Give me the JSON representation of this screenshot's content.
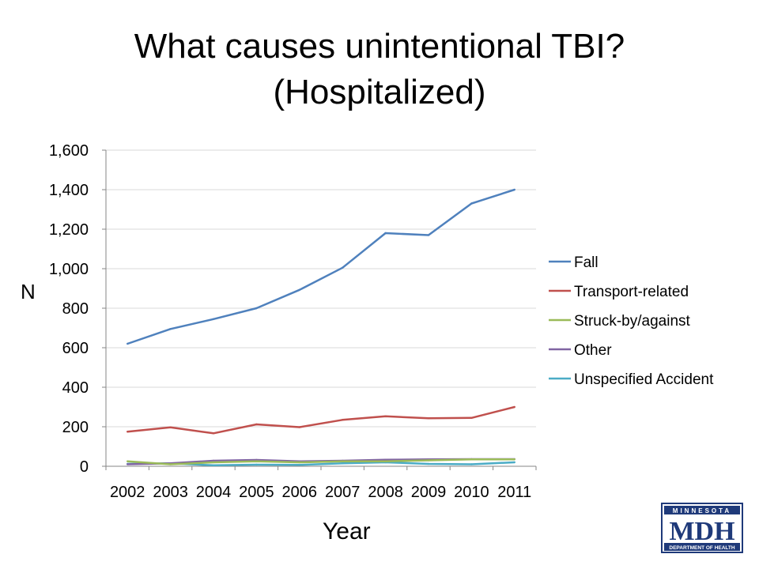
{
  "title_line1": "What causes unintentional TBI?",
  "title_line2": "(Hospitalized)",
  "chart_data": {
    "type": "line",
    "title": "What causes unintentional TBI? (Hospitalized)",
    "xlabel": "Year",
    "ylabel": "N",
    "x": [
      "2002",
      "2003",
      "2004",
      "2005",
      "2006",
      "2007",
      "2008",
      "2009",
      "2010",
      "2011"
    ],
    "ylim": [
      0,
      1600
    ],
    "yticks": [
      0,
      200,
      400,
      600,
      800,
      1000,
      1200,
      1400,
      1600
    ],
    "ytick_labels": [
      "0",
      "200",
      "400",
      "600",
      "800",
      "1,000",
      "1,200",
      "1,400",
      "1,600"
    ],
    "grid": true,
    "legend_position": "right",
    "series": [
      {
        "name": "Fall",
        "color": "#4f81bd",
        "values": [
          620,
          695,
          745,
          800,
          893,
          1005,
          1180,
          1170,
          1330,
          1400
        ]
      },
      {
        "name": "Transport-related",
        "color": "#c0504d",
        "values": [
          175,
          197,
          167,
          212,
          198,
          235,
          253,
          243,
          245,
          300
        ]
      },
      {
        "name": "Struck-by/against",
        "color": "#9bbb59",
        "values": [
          25,
          10,
          20,
          25,
          20,
          25,
          25,
          30,
          35,
          35
        ]
      },
      {
        "name": "Other",
        "color": "#8064a2",
        "values": [
          10,
          15,
          28,
          32,
          25,
          28,
          33,
          35,
          36,
          36
        ]
      },
      {
        "name": "Unspecified Accident",
        "color": "#4bacc6",
        "values": [
          12,
          15,
          5,
          8,
          7,
          15,
          20,
          12,
          10,
          20
        ]
      }
    ]
  },
  "logo": {
    "top_text": "MINNESOTA",
    "main_text": "MDH",
    "bottom_text": "DEPARTMENT OF HEALTH",
    "color": "#1f3a7a"
  }
}
